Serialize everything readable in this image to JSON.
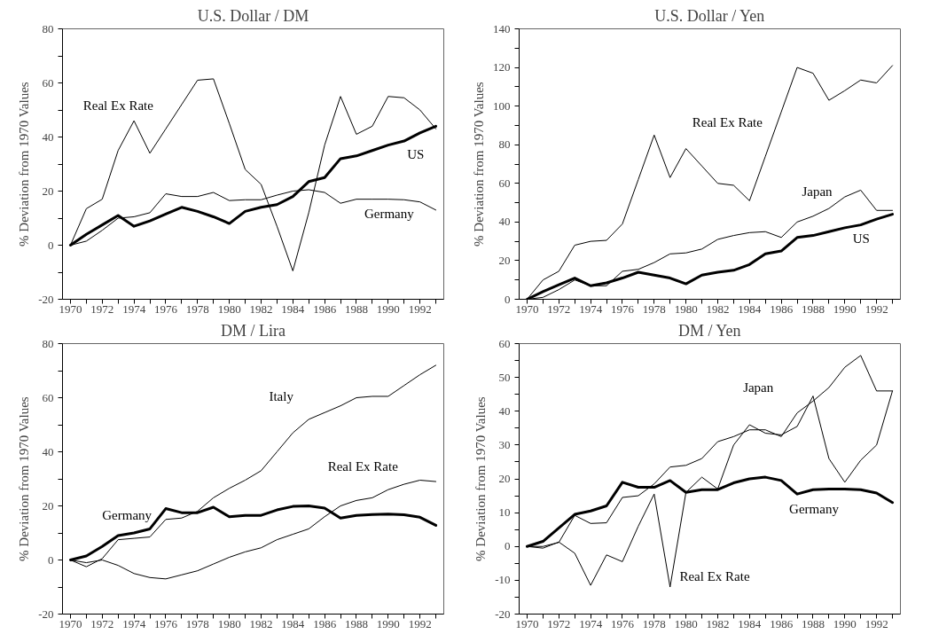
{
  "chart_data": [
    {
      "type": "line",
      "title": "U.S. Dollar / DM",
      "ylabel": "% Deviation from 1970 Values",
      "x": [
        1970,
        1971,
        1972,
        1973,
        1974,
        1975,
        1976,
        1977,
        1978,
        1979,
        1980,
        1981,
        1982,
        1983,
        1984,
        1985,
        1986,
        1987,
        1988,
        1989,
        1990,
        1991,
        1992,
        1993
      ],
      "xlim": [
        1969.5,
        1993.5
      ],
      "ylim": [
        -20,
        80
      ],
      "xticks": [
        1970,
        {
          "value": 1971,
          "label": null
        },
        1972,
        {
          "value": 1973,
          "label": null
        },
        1974,
        {
          "value": 1975,
          "label": null
        },
        1976,
        {
          "value": 1977,
          "label": null
        },
        1978,
        {
          "value": 1979,
          "label": null
        },
        1980,
        {
          "value": 1981,
          "label": null
        },
        1982,
        {
          "value": 1983,
          "label": null
        },
        1984,
        {
          "value": 1985,
          "label": null
        },
        1986,
        {
          "value": 1987,
          "label": null
        },
        1988,
        {
          "value": 1989,
          "label": null
        },
        1990,
        {
          "value": 1991,
          "label": null
        },
        1992,
        {
          "value": 1993,
          "label": null
        }
      ],
      "yticks": [
        -20,
        {
          "value": -10,
          "label": null
        },
        0,
        {
          "value": 10,
          "label": null
        },
        20,
        {
          "value": 30,
          "label": null
        },
        40,
        {
          "value": 50,
          "label": null
        },
        60,
        {
          "value": 70,
          "label": null
        },
        80
      ],
      "series": [
        {
          "name": "US",
          "color": "#000000",
          "values": [
            0,
            4,
            7.5,
            11,
            7,
            9,
            11.5,
            14,
            12.5,
            10.5,
            8,
            12.5,
            14,
            15,
            18,
            23.5,
            25,
            32,
            33,
            35,
            37,
            38.5,
            41.5,
            44
          ]
        },
        {
          "name": "Germany",
          "color": "#000000",
          "values": [
            0,
            1.5,
            5.5,
            10,
            10.5,
            12,
            19,
            18,
            18,
            19.5,
            16.5,
            16.8,
            16.8,
            18.5,
            20,
            20.5,
            19.5,
            15.5,
            17,
            17,
            17,
            16.8,
            16,
            13
          ]
        },
        {
          "name": "Real Ex Rate",
          "color": "#000000",
          "values": [
            0,
            13.5,
            17,
            35,
            46,
            34,
            43,
            52,
            61,
            61.5,
            45,
            28,
            22.5,
            7,
            -9.5,
            12,
            37,
            55,
            41,
            44,
            55,
            54.5,
            50,
            43
          ]
        }
      ]
    },
    {
      "type": "line",
      "title": "U.S. Dollar / Yen",
      "ylabel": "% Deviation from 1970 Values",
      "x": [
        1970,
        1971,
        1972,
        1973,
        1974,
        1975,
        1976,
        1977,
        1978,
        1979,
        1980,
        1981,
        1982,
        1983,
        1984,
        1985,
        1986,
        1987,
        1988,
        1989,
        1990,
        1991,
        1992,
        1993
      ],
      "xlim": [
        1969.5,
        1993.5
      ],
      "ylim": [
        0,
        140
      ],
      "xticks": [
        1970,
        {
          "value": 1971,
          "label": null
        },
        1972,
        {
          "value": 1973,
          "label": null
        },
        1974,
        {
          "value": 1975,
          "label": null
        },
        1976,
        {
          "value": 1977,
          "label": null
        },
        1978,
        {
          "value": 1979,
          "label": null
        },
        1980,
        {
          "value": 1981,
          "label": null
        },
        1982,
        {
          "value": 1983,
          "label": null
        },
        1984,
        {
          "value": 1985,
          "label": null
        },
        1986,
        {
          "value": 1987,
          "label": null
        },
        1988,
        {
          "value": 1989,
          "label": null
        },
        1990,
        {
          "value": 1991,
          "label": null
        },
        1992,
        {
          "value": 1993,
          "label": null
        }
      ],
      "yticks": [
        0,
        {
          "value": 10,
          "label": null
        },
        20,
        {
          "value": 30,
          "label": null
        },
        40,
        {
          "value": 50,
          "label": null
        },
        60,
        {
          "value": 70,
          "label": null
        },
        80,
        {
          "value": 90,
          "label": null
        },
        100,
        {
          "value": 110,
          "label": null
        },
        120,
        {
          "value": 130,
          "label": null
        },
        140
      ],
      "series": [
        {
          "name": "US",
          "color": "#000000",
          "values": [
            0,
            4,
            7.5,
            11,
            7,
            8.5,
            11,
            14,
            12.5,
            11,
            8,
            12.5,
            14,
            15,
            18,
            23.5,
            25,
            32,
            33,
            35,
            37,
            38.5,
            41.5,
            44
          ]
        },
        {
          "name": "Japan",
          "color": "#000000",
          "values": [
            0,
            1,
            5,
            10,
            7,
            7,
            14.5,
            15.5,
            19,
            23.5,
            24,
            26,
            31,
            33,
            34.5,
            35,
            32,
            40,
            43,
            47,
            53,
            56.5,
            46,
            46
          ]
        },
        {
          "name": "Real Ex Rate",
          "color": "#000000",
          "values": [
            0,
            10,
            14.5,
            28,
            30,
            30.5,
            39,
            62,
            85,
            63,
            78,
            69,
            60,
            59,
            51,
            74,
            97,
            120,
            117,
            103,
            108,
            113.5,
            112,
            121
          ]
        }
      ]
    },
    {
      "type": "line",
      "title": "DM / Lira",
      "ylabel": "% Deviation from 1970 Values",
      "x": [
        1970,
        1971,
        1972,
        1973,
        1974,
        1975,
        1976,
        1977,
        1978,
        1979,
        1980,
        1981,
        1982,
        1983,
        1984,
        1985,
        1986,
        1987,
        1988,
        1989,
        1990,
        1991,
        1992,
        1993
      ],
      "xlim": [
        1969.5,
        1993.5
      ],
      "ylim": [
        -20,
        80
      ],
      "xticks": [
        1970,
        {
          "value": 1971,
          "label": null
        },
        1972,
        {
          "value": 1973,
          "label": null
        },
        1974,
        {
          "value": 1975,
          "label": null
        },
        1976,
        {
          "value": 1977,
          "label": null
        },
        1978,
        {
          "value": 1979,
          "label": null
        },
        1980,
        {
          "value": 1981,
          "label": null
        },
        1982,
        {
          "value": 1983,
          "label": null
        },
        1984,
        {
          "value": 1985,
          "label": null
        },
        1986,
        {
          "value": 1987,
          "label": null
        },
        1988,
        {
          "value": 1989,
          "label": null
        },
        1990,
        {
          "value": 1991,
          "label": null
        },
        1992,
        {
          "value": 1993,
          "label": null
        }
      ],
      "yticks": [
        -20,
        {
          "value": -10,
          "label": null
        },
        0,
        {
          "value": 10,
          "label": null
        },
        20,
        {
          "value": 30,
          "label": null
        },
        40,
        {
          "value": 50,
          "label": null
        },
        60,
        {
          "value": 70,
          "label": null
        },
        80
      ],
      "series": [
        {
          "name": "Germany",
          "color": "#000000",
          "values": [
            0,
            1.5,
            5,
            9,
            10,
            11.5,
            19,
            17.5,
            17.5,
            19.5,
            16,
            16.5,
            16.5,
            18.5,
            19.8,
            20,
            19.2,
            15.5,
            16.5,
            16.8,
            17,
            16.7,
            15.8,
            12.8
          ]
        },
        {
          "name": "Italy",
          "color": "#000000",
          "values": [
            0,
            -2.5,
            0.5,
            7.5,
            8,
            8.5,
            15,
            15.5,
            18,
            23,
            26.5,
            29.5,
            33,
            40,
            47,
            52,
            54.5,
            57,
            60,
            60.5,
            60.5,
            64.5,
            68.5,
            72
          ]
        },
        {
          "name": "Real Ex Rate",
          "color": "#000000",
          "values": [
            0,
            -1,
            0,
            -2,
            -5,
            -6.5,
            -7,
            -5.5,
            -4,
            -1.5,
            1,
            3,
            4.5,
            7.5,
            9.5,
            11.5,
            16,
            20,
            22,
            23,
            26,
            28,
            29.5,
            29
          ]
        }
      ]
    },
    {
      "type": "line",
      "title": "DM / Yen",
      "ylabel": "% Deviation from 1970 Values",
      "x": [
        1970,
        1971,
        1972,
        1973,
        1974,
        1975,
        1976,
        1977,
        1978,
        1979,
        1980,
        1981,
        1982,
        1983,
        1984,
        1985,
        1986,
        1987,
        1988,
        1989,
        1990,
        1991,
        1992,
        1993
      ],
      "xlim": [
        1969.5,
        1993.5
      ],
      "ylim": [
        -20,
        60
      ],
      "xticks": [
        1970,
        {
          "value": 1971,
          "label": null
        },
        1972,
        {
          "value": 1973,
          "label": null
        },
        1974,
        {
          "value": 1975,
          "label": null
        },
        1976,
        {
          "value": 1977,
          "label": null
        },
        1978,
        {
          "value": 1979,
          "label": null
        },
        1980,
        {
          "value": 1981,
          "label": null
        },
        1982,
        {
          "value": 1983,
          "label": null
        },
        1984,
        {
          "value": 1985,
          "label": null
        },
        1986,
        {
          "value": 1987,
          "label": null
        },
        1988,
        {
          "value": 1989,
          "label": null
        },
        1990,
        {
          "value": 1991,
          "label": null
        },
        1992,
        {
          "value": 1993,
          "label": null
        }
      ],
      "yticks": [
        -20,
        {
          "value": -15,
          "label": null
        },
        -10,
        {
          "value": -5,
          "label": null
        },
        0,
        {
          "value": 5,
          "label": null
        },
        10,
        {
          "value": 15,
          "label": null
        },
        20,
        {
          "value": 25,
          "label": null
        },
        30,
        {
          "value": 35,
          "label": null
        },
        40,
        {
          "value": 45,
          "label": null
        },
        50,
        {
          "value": 55,
          "label": null
        },
        60
      ],
      "series": [
        {
          "name": "Germany",
          "color": "#000000",
          "values": [
            0,
            1.5,
            5.5,
            9.5,
            10.5,
            12,
            19,
            17.5,
            17.5,
            19.5,
            16,
            16.8,
            16.8,
            18.8,
            20,
            20.5,
            19.5,
            15.5,
            16.8,
            17,
            17,
            16.8,
            15.8,
            13
          ]
        },
        {
          "name": "Japan",
          "color": "#000000",
          "values": [
            0,
            0,
            1.2,
            9.2,
            6.8,
            7,
            14.5,
            15,
            18.5,
            23.5,
            24,
            26,
            31,
            32.5,
            34.5,
            34.5,
            32.5,
            39.5,
            43,
            47,
            53,
            56.5,
            46,
            46
          ]
        },
        {
          "name": "Real Ex Rate",
          "color": "#000000",
          "values": [
            0,
            -0.5,
            1.3,
            -2,
            -11.5,
            -2.5,
            -4.5,
            6,
            15.5,
            -12,
            16,
            20.5,
            17,
            30,
            36,
            33.5,
            33,
            35.5,
            44.5,
            26,
            19,
            25.5,
            30,
            46
          ]
        }
      ]
    }
  ]
}
